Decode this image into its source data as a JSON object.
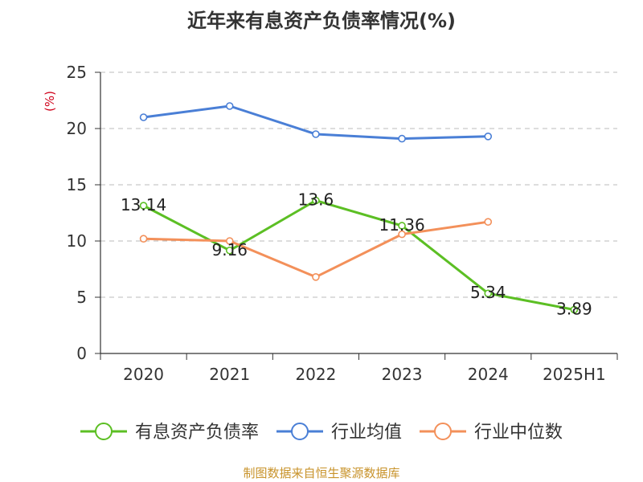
{
  "chart_data": {
    "type": "line",
    "title": "近年来有息资产负债率情况(%)",
    "ylabel": "(%)",
    "xlabel": "",
    "categories": [
      "2020",
      "2021",
      "2022",
      "2023",
      "2024",
      "2025H1"
    ],
    "ylim": [
      0,
      25
    ],
    "yticks": [
      0,
      5,
      10,
      15,
      20,
      25
    ],
    "grid": true,
    "legend_position": "bottom",
    "series": [
      {
        "name": "有息资产负债率",
        "color": "#5cbf24",
        "values": [
          13.14,
          9.16,
          13.6,
          11.36,
          5.34,
          3.89
        ],
        "labels": [
          "13.14",
          "9.16",
          "13.6",
          "11.36",
          "5.34",
          "3.89"
        ]
      },
      {
        "name": "行业均值",
        "color": "#4a7fd6",
        "values": [
          21.0,
          22.0,
          19.5,
          19.1,
          19.3,
          null
        ]
      },
      {
        "name": "行业中位数",
        "color": "#f3905a",
        "values": [
          10.2,
          10.0,
          6.8,
          10.6,
          11.7,
          null
        ]
      }
    ],
    "source": "制图数据来自恒生聚源数据库"
  }
}
